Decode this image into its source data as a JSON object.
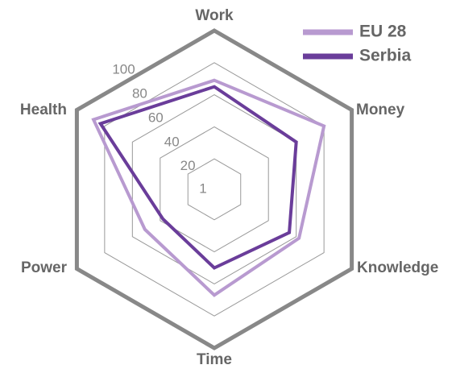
{
  "chart_data": {
    "type": "radar",
    "categories": [
      "Work",
      "Money",
      "Knowledge",
      "Time",
      "Power",
      "Health"
    ],
    "series": [
      {
        "name": "EU 28",
        "color": "#b89ad0",
        "values": [
          69,
          80,
          62,
          67,
          51,
          88
        ]
      },
      {
        "name": "Serbia",
        "color": "#6a3d9a",
        "values": [
          65,
          60,
          55,
          50,
          38,
          83
        ]
      }
    ],
    "ylim": [
      1,
      100
    ],
    "yticks": [
      1,
      20,
      40,
      60,
      80,
      100
    ]
  }
}
